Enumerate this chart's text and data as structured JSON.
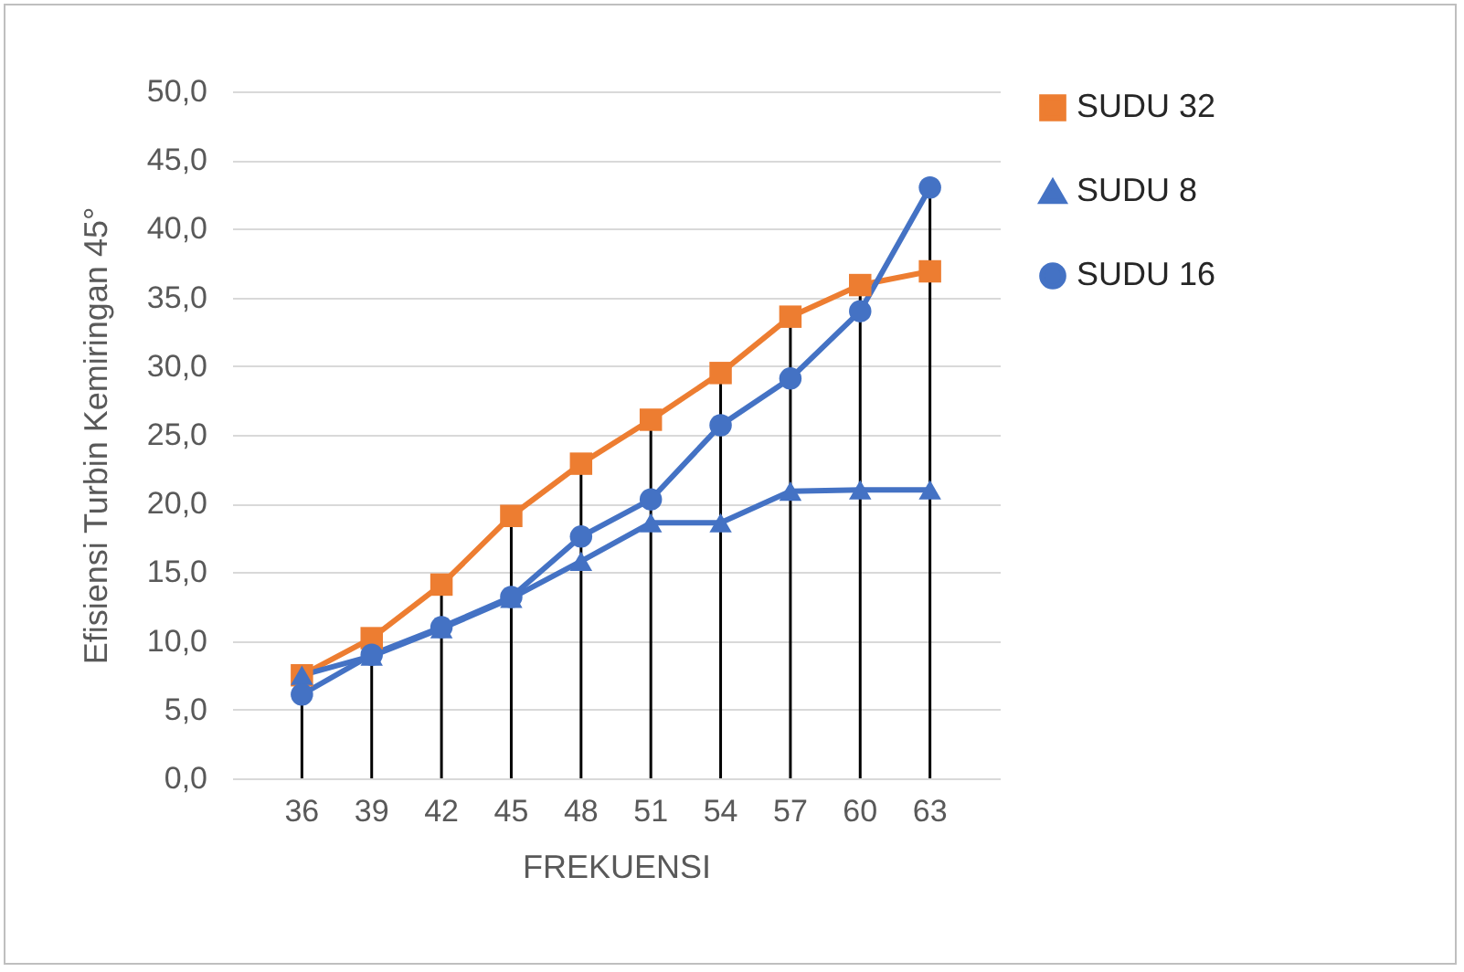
{
  "chart_data": {
    "type": "line",
    "xlabel": "FREKUENSI",
    "ylabel": "Efisiensi Turbin Kemiringan 45°",
    "categories": [
      "36",
      "39",
      "42",
      "45",
      "48",
      "51",
      "54",
      "57",
      "60",
      "63"
    ],
    "series": [
      {
        "name": "SUDU 32",
        "color": "#ed7d31",
        "marker": "square",
        "values": [
          7.5,
          10.2,
          14.1,
          19.1,
          22.9,
          26.1,
          29.5,
          33.6,
          35.9,
          36.9
        ]
      },
      {
        "name": "SUDU 8",
        "color": "#4472c4",
        "marker": "triangle",
        "values": [
          7.5,
          8.9,
          10.9,
          13.1,
          15.8,
          18.6,
          18.6,
          20.9,
          21.0,
          21.0
        ]
      },
      {
        "name": "SUDU 16",
        "color": "#4472c4",
        "marker": "circle",
        "values": [
          6.1,
          9.0,
          11.0,
          13.2,
          17.6,
          20.3,
          25.7,
          29.1,
          34.0,
          43.0
        ]
      }
    ],
    "ylim": [
      0,
      50
    ],
    "yticks": [
      {
        "value": 0,
        "label": "0,0"
      },
      {
        "value": 5,
        "label": "5,0"
      },
      {
        "value": 10,
        "label": "10,0"
      },
      {
        "value": 15,
        "label": "15,0"
      },
      {
        "value": 20,
        "label": "20,0"
      },
      {
        "value": 25,
        "label": "25,0"
      },
      {
        "value": 30,
        "label": "30,0"
      },
      {
        "value": 35,
        "label": "35,0"
      },
      {
        "value": 40,
        "label": "40,0"
      },
      {
        "value": 45,
        "label": "45,0"
      },
      {
        "value": 50,
        "label": "50,0"
      }
    ],
    "ref_lines": [
      {
        "axis": "x",
        "value": "36",
        "color": "#000000"
      },
      {
        "axis": "x",
        "value": "39",
        "color": "#000000"
      },
      {
        "axis": "x",
        "value": "42",
        "color": "#000000"
      },
      {
        "axis": "x",
        "value": "45",
        "color": "#000000"
      },
      {
        "axis": "x",
        "value": "48",
        "color": "#000000"
      },
      {
        "axis": "x",
        "value": "51",
        "color": "#000000"
      },
      {
        "axis": "x",
        "value": "54",
        "color": "#000000"
      },
      {
        "axis": "x",
        "value": "57",
        "color": "#000000"
      },
      {
        "axis": "x",
        "value": "60",
        "color": "#000000"
      },
      {
        "axis": "x",
        "value": "63",
        "color": "#000000"
      }
    ],
    "grid": "y",
    "legend": "right",
    "line_style": "solid"
  }
}
